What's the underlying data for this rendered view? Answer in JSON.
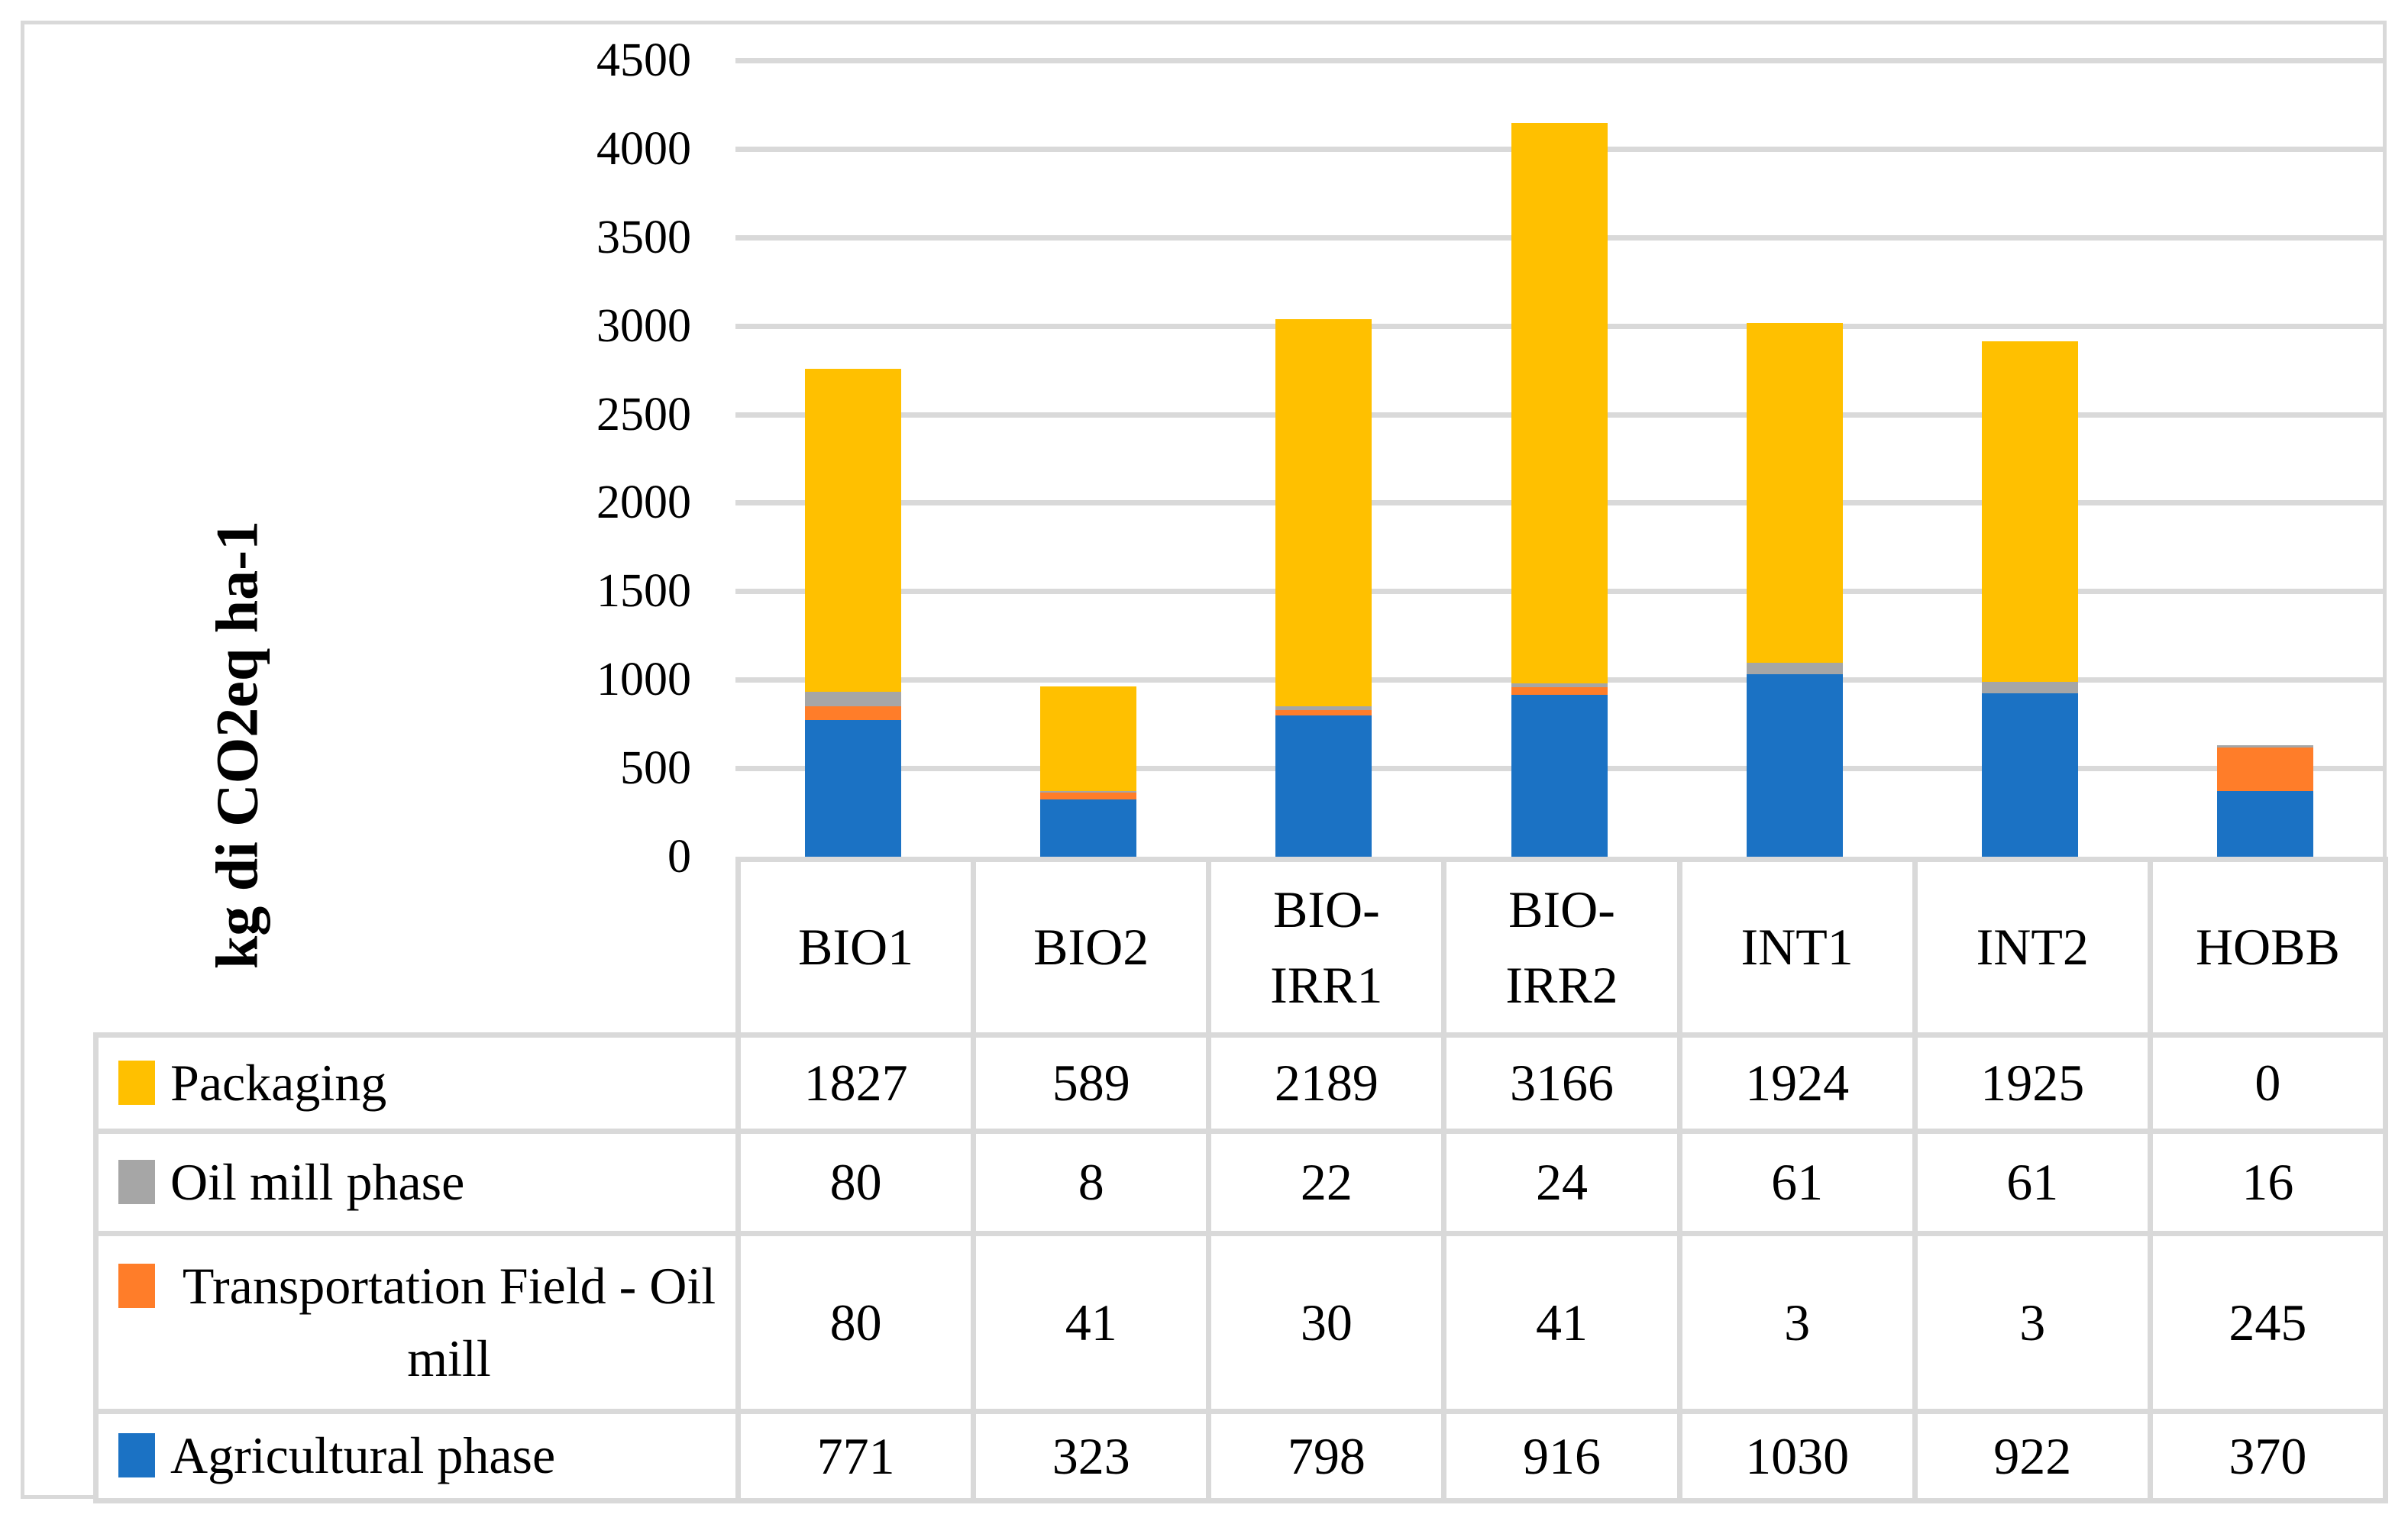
{
  "chart_data": {
    "type": "bar",
    "stacked": true,
    "title": "",
    "xlabel": "",
    "ylabel": "kg di CO2eq ha-1",
    "ylim": [
      0,
      4500
    ],
    "ytick_step": 500,
    "yticks": [
      "0",
      "500",
      "1000",
      "1500",
      "2000",
      "2500",
      "3000",
      "3500",
      "4000",
      "4500"
    ],
    "grid": true,
    "legend_position": "table-left-column",
    "categories": [
      "BIO1",
      "BIO2",
      "BIO-IRR1",
      "BIO-IRR2",
      "INT1",
      "INT2",
      "HOBB"
    ],
    "categories_display": [
      [
        "BIO1"
      ],
      [
        "BIO2"
      ],
      [
        "BIO-",
        "IRR1"
      ],
      [
        "BIO-",
        "IRR2"
      ],
      [
        "INT1"
      ],
      [
        "INT2"
      ],
      [
        "HOBB"
      ]
    ],
    "series": [
      {
        "name": "Agricultural phase",
        "color": "#1B72C4",
        "values": [
          771,
          323,
          798,
          916,
          1030,
          922,
          370
        ]
      },
      {
        "name": "Transportation Field - Oil mill",
        "color": "#FF7D29",
        "values": [
          80,
          41,
          30,
          41,
          3,
          3,
          245
        ]
      },
      {
        "name": "Oil mill phase",
        "color": "#A6A6A6",
        "values": [
          80,
          8,
          22,
          24,
          61,
          61,
          16
        ]
      },
      {
        "name": "Packaging",
        "color": "#FFC000",
        "values": [
          1827,
          589,
          2189,
          3166,
          1924,
          1925,
          0
        ]
      }
    ]
  },
  "table": {
    "row_order_top_to_bottom": [
      3,
      2,
      1,
      0
    ]
  },
  "colors": {
    "gridline": "#D9D9D9",
    "frame_border": "#D9D9D9",
    "text": "#000000",
    "background": "#FFFFFF"
  }
}
